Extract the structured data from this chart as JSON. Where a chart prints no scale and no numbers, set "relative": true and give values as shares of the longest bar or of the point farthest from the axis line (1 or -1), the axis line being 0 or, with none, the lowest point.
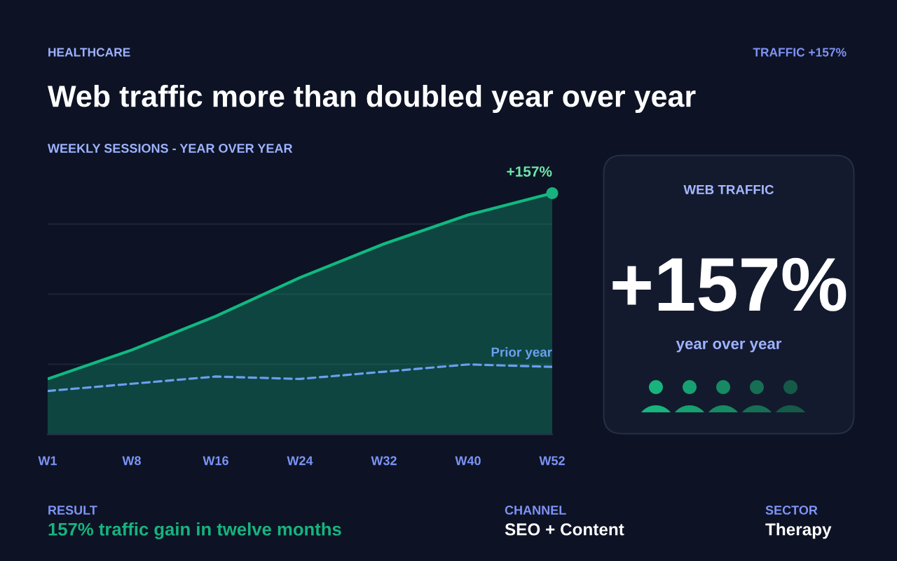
{
  "chart_data": [
    {
      "type": "line",
      "title": "Web traffic more than doubled year over year",
      "subtitle": "WEEKLY SESSIONS - YEAR OVER YEAR",
      "categories": [
        "W1",
        "W8",
        "W16",
        "W24",
        "W32",
        "W40",
        "W52"
      ],
      "relative": true,
      "grid": "y",
      "tick_labels": "x",
      "line_style": "solid",
      "series": [
        {
          "type": "area",
          "color": "#10b981",
          "values": [
            0.23,
            0.35,
            0.49,
            0.65,
            0.79,
            0.91,
            1
          ]
        },
        {
          "name": "Prior year",
          "color": "#6b9ff0",
          "line_style": "dashed",
          "values": [
            0.18,
            0.21,
            0.24,
            0.23,
            0.26,
            0.29,
            0.28
          ]
        }
      ],
      "annotations": [
        "HEALTHCARE",
        "TRAFFIC +157%",
        {
          "text": "+157%",
          "x": "W52",
          "y": 1
        },
        "RESULT",
        "157% traffic gain in twelve months",
        "CHANNEL",
        "SEO + Content",
        "SECTOR",
        "Therapy"
      ]
    },
    {
      "type": "other",
      "title": "WEB TRAFFIC",
      "annotations": [
        "+157%",
        "year over year"
      ]
    }
  ]
}
